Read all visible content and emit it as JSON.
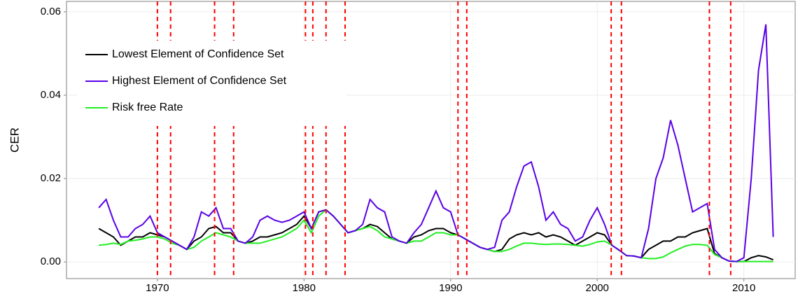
{
  "chart_data": {
    "type": "line",
    "ylabel": "CER",
    "x": [
      1966,
      1966.5,
      1967,
      1967.5,
      1968,
      1968.5,
      1969,
      1969.5,
      1970,
      1970.5,
      1971,
      1971.5,
      1972,
      1972.5,
      1973,
      1973.5,
      1974,
      1974.5,
      1975,
      1975.5,
      1976,
      1976.5,
      1977,
      1977.5,
      1978,
      1978.5,
      1979,
      1979.5,
      1980,
      1980.5,
      1981,
      1981.5,
      1982,
      1982.5,
      1983,
      1983.5,
      1984,
      1984.5,
      1985,
      1985.5,
      1986,
      1986.5,
      1987,
      1987.5,
      1988,
      1988.5,
      1989,
      1989.5,
      1990,
      1990.5,
      1991,
      1991.5,
      1992,
      1992.5,
      1993,
      1993.5,
      1994,
      1994.5,
      1995,
      1995.5,
      1996,
      1996.5,
      1997,
      1997.5,
      1998,
      1998.5,
      1999,
      1999.5,
      2000,
      2000.5,
      2001,
      2001.5,
      2002,
      2002.5,
      2003,
      2003.5,
      2004,
      2004.5,
      2005,
      2005.5,
      2006,
      2006.5,
      2007,
      2007.5,
      2008,
      2008.5,
      2009,
      2009.5,
      2010,
      2010.5,
      2011,
      2011.5,
      2012
    ],
    "series": [
      {
        "name": "Lowest Element of Confidence Set",
        "color": "#000000",
        "values": [
          0.008,
          0.007,
          0.006,
          0.004,
          0.005,
          0.006,
          0.006,
          0.007,
          0.0065,
          0.006,
          0.005,
          0.004,
          0.003,
          0.005,
          0.006,
          0.008,
          0.0085,
          0.007,
          0.007,
          0.005,
          0.0045,
          0.005,
          0.006,
          0.006,
          0.0065,
          0.007,
          0.008,
          0.009,
          0.011,
          0.008,
          0.012,
          0.0125,
          0.011,
          0.009,
          0.007,
          0.0075,
          0.008,
          0.009,
          0.0085,
          0.007,
          0.0055,
          0.005,
          0.0045,
          0.006,
          0.0065,
          0.0075,
          0.008,
          0.008,
          0.007,
          0.0065,
          0.0055,
          0.0045,
          0.0035,
          0.003,
          0.0025,
          0.003,
          0.0055,
          0.0065,
          0.007,
          0.0065,
          0.007,
          0.006,
          0.0065,
          0.006,
          0.005,
          0.004,
          0.005,
          0.006,
          0.007,
          0.0065,
          0.004,
          0.0028,
          0.0015,
          0.0014,
          0.001,
          0.003,
          0.004,
          0.005,
          0.005,
          0.006,
          0.006,
          0.007,
          0.0075,
          0.008,
          0.002,
          0.001,
          0.0002,
          0.0001,
          0.0001,
          0.001,
          0.0015,
          0.0012,
          0.0005
        ]
      },
      {
        "name": "Highest Element of Confidence Set",
        "color": "#5a00e6",
        "values": [
          0.013,
          0.015,
          0.01,
          0.006,
          0.006,
          0.008,
          0.009,
          0.011,
          0.007,
          0.006,
          0.005,
          0.004,
          0.003,
          0.006,
          0.012,
          0.011,
          0.013,
          0.008,
          0.008,
          0.005,
          0.0045,
          0.006,
          0.01,
          0.011,
          0.01,
          0.0095,
          0.01,
          0.011,
          0.012,
          0.008,
          0.012,
          0.0125,
          0.011,
          0.009,
          0.007,
          0.0075,
          0.009,
          0.015,
          0.013,
          0.012,
          0.006,
          0.005,
          0.0045,
          0.007,
          0.009,
          0.013,
          0.017,
          0.013,
          0.012,
          0.0065,
          0.0055,
          0.0045,
          0.0035,
          0.003,
          0.0035,
          0.01,
          0.012,
          0.018,
          0.023,
          0.024,
          0.018,
          0.01,
          0.012,
          0.009,
          0.008,
          0.005,
          0.006,
          0.01,
          0.013,
          0.009,
          0.004,
          0.0028,
          0.0015,
          0.0014,
          0.001,
          0.008,
          0.02,
          0.025,
          0.034,
          0.028,
          0.02,
          0.012,
          0.013,
          0.014,
          0.003,
          0.001,
          0.0002,
          0.0001,
          0.001,
          0.02,
          0.046,
          0.057,
          0.006
        ]
      },
      {
        "name": "Risk free Rate",
        "color": "#22ee22",
        "values": [
          0.004,
          0.0042,
          0.0045,
          0.0042,
          0.005,
          0.0052,
          0.0055,
          0.006,
          0.006,
          0.0055,
          0.0045,
          0.004,
          0.003,
          0.0035,
          0.005,
          0.006,
          0.007,
          0.0065,
          0.006,
          0.005,
          0.0045,
          0.0045,
          0.0045,
          0.005,
          0.0055,
          0.006,
          0.007,
          0.008,
          0.01,
          0.007,
          0.011,
          0.0125,
          0.011,
          0.009,
          0.007,
          0.0075,
          0.008,
          0.0085,
          0.0075,
          0.006,
          0.0055,
          0.005,
          0.0045,
          0.005,
          0.005,
          0.006,
          0.007,
          0.007,
          0.0065,
          0.0065,
          0.0055,
          0.0045,
          0.0035,
          0.003,
          0.0025,
          0.0025,
          0.003,
          0.0038,
          0.0045,
          0.0045,
          0.0043,
          0.0042,
          0.0043,
          0.0043,
          0.0042,
          0.004,
          0.0038,
          0.0042,
          0.0048,
          0.005,
          0.004,
          0.0028,
          0.0015,
          0.0014,
          0.001,
          0.0008,
          0.0008,
          0.0012,
          0.0022,
          0.003,
          0.0038,
          0.0042,
          0.0042,
          0.004,
          0.0018,
          0.001,
          0.0002,
          0.0001,
          0.0001,
          0.0001,
          0.0001,
          0.0001,
          0.0001
        ]
      }
    ],
    "vlines": [
      1970,
      1970.9,
      1973.9,
      1975.2,
      1980.1,
      1980.6,
      1981.5,
      1982.8,
      1990.5,
      1991.1,
      2000.95,
      2001.65,
      2007.65,
      2009.1
    ],
    "vline_color": "#ff0000",
    "xlim": [
      1963.8,
      2013.5
    ],
    "ylim": [
      -0.004,
      0.0625
    ],
    "xticks": [
      1970,
      1980,
      1990,
      2000,
      2010
    ],
    "yticks": [
      {
        "value": 0,
        "label": "0.00"
      },
      {
        "value": 0.02,
        "label": "0.02"
      },
      {
        "value": 0.04,
        "label": "0.04"
      },
      {
        "value": 0.06,
        "label": "0.06"
      }
    ],
    "grid": true
  }
}
